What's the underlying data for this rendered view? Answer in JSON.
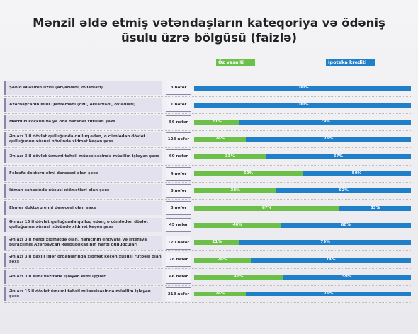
{
  "chart_data": {
    "type": "stacked-bar-horizontal",
    "title": "Mənzil əldə etmiş vətəndaşların kateqoriya və ödəniş üsulu üzrə bölgüsü (faizlə)",
    "categories": [
      "Şəhid ailəsinin üzvü (əri/arvadı, övladları)",
      "Azərbaycanın Milli Qəhrəmanı (özü, əri/arvadı, övladları)",
      "Məcburi köçkün və ya ona bərabər tutulan şəxs",
      "Ən azı 3 il dövlət qulluğunda qulluq edən, o cümlədən dövlət qulluğunun xüsusi növündə xidmət keçən şəxs",
      "Ən azı 3 il dövlət ümumi təhsil müəssisəsində müəllim işləyən şəxs",
      "Fəlsəfə doktoru elmi dərəcəsi olan şəxs",
      "İdman sahəsində xüsusi xidmətləri olan şəxs",
      "Elmlər doktoru elmi dərəcəsi olan şəxs",
      "Ən azı 15 il dövlət qulluğunda qulluq edən, o cümlədən dövlət qulluğunun xüsusi növündə xidmət keçən şəxs",
      "Ən azı 3 il hərbi xidmətdə olan, həmçinin ehtiyata və istefaya buraxılmış Azərbaycan Respublikasının hərbi qulluqçuları",
      "Ən azı 3 il daxili işlər orqanlarında xidmət keçən xüsusi rütbəsi olan şəxs",
      "Ən azı 3 il elmi vəzifədə işləyən elmi işçilər",
      "Ən azı 15 il dövlət ümumi təhsil müəssisəsində müəllim işləyən şəxs"
    ],
    "counts": [
      "3 nəfər",
      "1 nəfər",
      "56 nəfər",
      "123 nəfər",
      "60 nəfər",
      "4 nəfər",
      "8 nəfər",
      "3 nəfər",
      "45 nəfər",
      "170 nəfər",
      "78 nəfər",
      "46 nəfər",
      "218 nəfər"
    ],
    "series": [
      {
        "name": "Öz vəsaiti",
        "color": "#6cc04a",
        "values": [
          0,
          0,
          21,
          24,
          33,
          50,
          38,
          67,
          40,
          21,
          26,
          41,
          24
        ],
        "value_labels": [
          null,
          null,
          "21%",
          "24%",
          "33%",
          "50%",
          "38%",
          "67%",
          "40%",
          "21%",
          "26%",
          "41%",
          "24%"
        ]
      },
      {
        "name": "İpoteka krediti",
        "color": "#1f7fc8",
        "values": [
          100,
          100,
          79,
          76,
          67,
          50,
          62,
          33,
          60,
          79,
          74,
          59,
          76
        ],
        "value_labels": [
          "100%",
          "100%",
          "79%",
          "76%",
          "67%",
          "50%",
          "62%",
          "33%",
          "60%",
          "79%",
          "74%",
          "59%",
          "76%"
        ]
      }
    ],
    "xlim": [
      0,
      100
    ]
  }
}
